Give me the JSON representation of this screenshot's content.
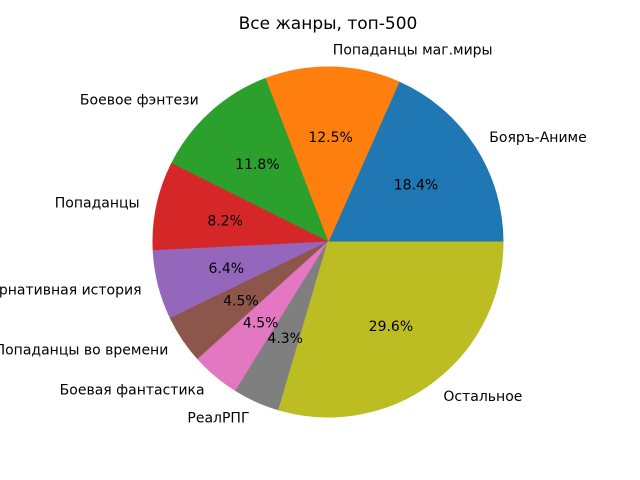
{
  "chart_data": {
    "type": "pie",
    "title": "Все жанры, топ-500",
    "start_angle_deg": 0,
    "direction": "counterclockwise",
    "legend": "none",
    "background_color": "#ffffff",
    "text_color": "#000000",
    "slices": [
      {
        "label": "Бояръ-Аниме",
        "value": 18.4,
        "pct_label": "18.4%",
        "color": "#1f77b4"
      },
      {
        "label": "Попаданцы маг.миры",
        "value": 12.5,
        "pct_label": "12.5%",
        "color": "#ff7f0e"
      },
      {
        "label": "Боевое фэнтези",
        "value": 11.8,
        "pct_label": "11.8%",
        "color": "#2ca02c"
      },
      {
        "label": "Попаданцы",
        "value": 8.2,
        "pct_label": "8.2%",
        "color": "#d62728"
      },
      {
        "label": "Альтернативная история",
        "value": 6.4,
        "pct_label": "6.4%",
        "color": "#9467bd"
      },
      {
        "label": "Попаданцы во времени",
        "value": 4.5,
        "pct_label": "4.5%",
        "color": "#8c564b"
      },
      {
        "label": "Боевая фантастика",
        "value": 4.5,
        "pct_label": "4.5%",
        "color": "#e377c2"
      },
      {
        "label": "РеалРПГ",
        "value": 4.3,
        "pct_label": "4.3%",
        "color": "#7f7f7f"
      },
      {
        "label": "Остальное",
        "value": 29.6,
        "pct_label": "29.6%",
        "color": "#bcbd22"
      }
    ]
  }
}
